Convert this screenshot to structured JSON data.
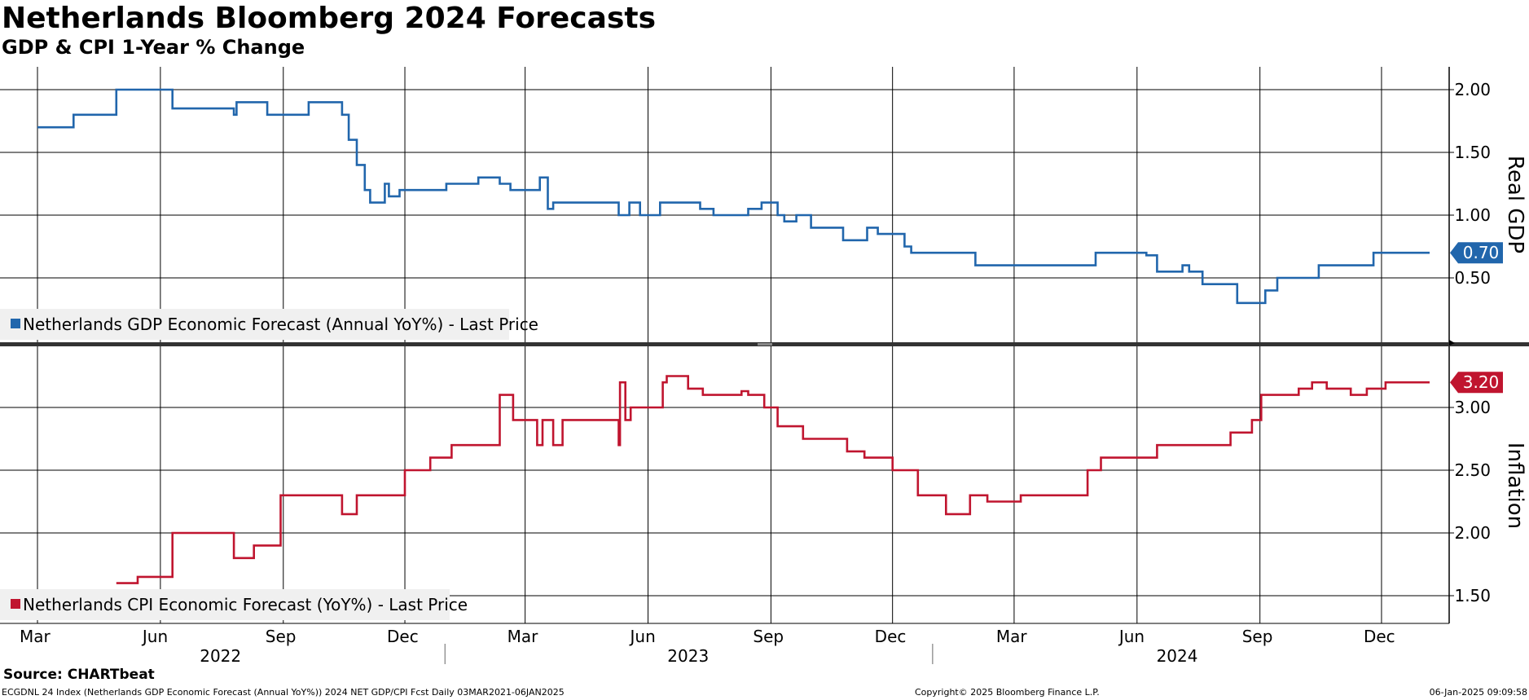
{
  "header": {
    "title": "Netherlands Bloomberg 2024 Forecasts",
    "subtitle": "GDP & CPI 1-Year % Change"
  },
  "footer": {
    "source": "Source: CHARTbeat",
    "description": "ECGDNL 24 Index (Netherlands GDP Economic Forecast (Annual YoY%)) 2024 NET GDP/CPI Fcst  Daily 03MAR2021-06JAN2025",
    "copyright": "Copyright© 2025 Bloomberg Finance L.P.",
    "timestamp": "06-Jan-2025 09:09:58"
  },
  "x_axis": {
    "range": [
      "2022-03-01",
      "2025-01-06"
    ],
    "month_ticks": [
      {
        "label": "Mar",
        "date": "2022-03-01"
      },
      {
        "label": "Jun",
        "date": "2022-06-01"
      },
      {
        "label": "Sep",
        "date": "2022-09-01"
      },
      {
        "label": "Dec",
        "date": "2022-12-01"
      },
      {
        "label": "Mar",
        "date": "2023-03-01"
      },
      {
        "label": "Jun",
        "date": "2023-06-01"
      },
      {
        "label": "Sep",
        "date": "2023-09-01"
      },
      {
        "label": "Dec",
        "date": "2023-12-01"
      },
      {
        "label": "Mar",
        "date": "2024-03-01"
      },
      {
        "label": "Jun",
        "date": "2024-06-01"
      },
      {
        "label": "Sep",
        "date": "2024-09-01"
      },
      {
        "label": "Dec",
        "date": "2024-12-01"
      }
    ],
    "year_labels": [
      {
        "label": "2022",
        "date": "2022-07-16"
      },
      {
        "label": "2023",
        "date": "2023-07-01"
      },
      {
        "label": "2024",
        "date": "2024-07-01"
      }
    ],
    "year_separators": [
      "2022-12-31",
      "2023-12-31"
    ]
  },
  "chart_data": [
    {
      "type": "line",
      "panel": "top",
      "ylabel": "Real GDP",
      "ylim": [
        0.0,
        2.2
      ],
      "yticks": [
        "2.00",
        "1.50",
        "1.00",
        "0.50"
      ],
      "grid": true,
      "legend_position": "bottom-left",
      "color": "#2166ac",
      "last_value_label": "0.70",
      "series": [
        {
          "name": "Netherlands GDP Economic Forecast (Annual YoY%) - Last Price",
          "points": [
            [
              "2022-03-01",
              1.7
            ],
            [
              "2022-03-28",
              1.8
            ],
            [
              "2022-04-29",
              2.0
            ],
            [
              "2022-06-10",
              1.85
            ],
            [
              "2022-07-26",
              1.8
            ],
            [
              "2022-07-28",
              1.9
            ],
            [
              "2022-08-20",
              1.8
            ],
            [
              "2022-09-20",
              1.9
            ],
            [
              "2022-10-15",
              1.8
            ],
            [
              "2022-10-20",
              1.6
            ],
            [
              "2022-10-26",
              1.4
            ],
            [
              "2022-11-01",
              1.2
            ],
            [
              "2022-11-05",
              1.1
            ],
            [
              "2022-11-16",
              1.25
            ],
            [
              "2022-11-19",
              1.15
            ],
            [
              "2022-11-27",
              1.2
            ],
            [
              "2023-01-01",
              1.25
            ],
            [
              "2023-01-25",
              1.3
            ],
            [
              "2023-02-10",
              1.25
            ],
            [
              "2023-02-18",
              1.2
            ],
            [
              "2023-03-12",
              1.3
            ],
            [
              "2023-03-18",
              1.05
            ],
            [
              "2023-03-22",
              1.1
            ],
            [
              "2023-05-10",
              1.0
            ],
            [
              "2023-05-18",
              1.1
            ],
            [
              "2023-05-26",
              1.0
            ],
            [
              "2023-06-10",
              1.1
            ],
            [
              "2023-07-10",
              1.05
            ],
            [
              "2023-07-20",
              1.0
            ],
            [
              "2023-08-15",
              1.05
            ],
            [
              "2023-08-25",
              1.1
            ],
            [
              "2023-09-06",
              1.0
            ],
            [
              "2023-09-11",
              0.95
            ],
            [
              "2023-09-20",
              1.0
            ],
            [
              "2023-10-01",
              0.9
            ],
            [
              "2023-10-25",
              0.8
            ],
            [
              "2023-11-12",
              0.9
            ],
            [
              "2023-11-20",
              0.85
            ],
            [
              "2023-12-10",
              0.75
            ],
            [
              "2023-12-15",
              0.7
            ],
            [
              "2024-02-01",
              0.6
            ],
            [
              "2024-05-01",
              0.7
            ],
            [
              "2024-06-08",
              0.68
            ],
            [
              "2024-06-16",
              0.55
            ],
            [
              "2024-07-05",
              0.6
            ],
            [
              "2024-07-10",
              0.55
            ],
            [
              "2024-07-20",
              0.45
            ],
            [
              "2024-08-15",
              0.3
            ],
            [
              "2024-09-05",
              0.4
            ],
            [
              "2024-09-14",
              0.5
            ],
            [
              "2024-10-15",
              0.6
            ],
            [
              "2024-11-25",
              0.7
            ],
            [
              "2025-01-06",
              0.7
            ]
          ]
        }
      ]
    },
    {
      "type": "line",
      "panel": "bottom",
      "ylabel": "Inflation",
      "ylim": [
        1.25,
        3.35
      ],
      "yticks": [
        "3.00",
        "2.50",
        "2.00",
        "1.50"
      ],
      "grid": true,
      "legend_position": "bottom-left",
      "color": "#c0152f",
      "last_value_label": "3.20",
      "series": [
        {
          "name": "Netherlands CPI Economic Forecast (YoY%) - Last Price",
          "points": [
            [
              "2022-04-29",
              1.6
            ],
            [
              "2022-05-15",
              1.65
            ],
            [
              "2022-06-10",
              2.0
            ],
            [
              "2022-07-26",
              1.8
            ],
            [
              "2022-08-10",
              1.9
            ],
            [
              "2022-08-30",
              2.3
            ],
            [
              "2022-10-15",
              2.15
            ],
            [
              "2022-10-26",
              2.3
            ],
            [
              "2022-12-01",
              2.5
            ],
            [
              "2022-12-20",
              2.6
            ],
            [
              "2023-01-05",
              2.7
            ],
            [
              "2023-02-10",
              3.1
            ],
            [
              "2023-02-20",
              2.9
            ],
            [
              "2023-03-10",
              2.7
            ],
            [
              "2023-03-14",
              2.9
            ],
            [
              "2023-03-22",
              2.7
            ],
            [
              "2023-03-29",
              2.9
            ],
            [
              "2023-05-10",
              2.7
            ],
            [
              "2023-05-11",
              3.2
            ],
            [
              "2023-05-15",
              2.9
            ],
            [
              "2023-05-19",
              3.0
            ],
            [
              "2023-06-12",
              3.2
            ],
            [
              "2023-06-15",
              3.25
            ],
            [
              "2023-07-01",
              3.15
            ],
            [
              "2023-07-12",
              3.1
            ],
            [
              "2023-08-10",
              3.13
            ],
            [
              "2023-08-15",
              3.1
            ],
            [
              "2023-08-27",
              3.0
            ],
            [
              "2023-09-06",
              2.85
            ],
            [
              "2023-09-25",
              2.75
            ],
            [
              "2023-10-28",
              2.65
            ],
            [
              "2023-11-10",
              2.6
            ],
            [
              "2023-12-01",
              2.5
            ],
            [
              "2023-12-20",
              2.3
            ],
            [
              "2024-01-10",
              2.15
            ],
            [
              "2024-01-28",
              2.3
            ],
            [
              "2024-02-10",
              2.25
            ],
            [
              "2024-03-06",
              2.3
            ],
            [
              "2024-04-25",
              2.5
            ],
            [
              "2024-05-05",
              2.6
            ],
            [
              "2024-06-16",
              2.7
            ],
            [
              "2024-08-10",
              2.8
            ],
            [
              "2024-08-26",
              2.9
            ],
            [
              "2024-09-02",
              3.1
            ],
            [
              "2024-09-30",
              3.15
            ],
            [
              "2024-10-10",
              3.2
            ],
            [
              "2024-10-21",
              3.15
            ],
            [
              "2024-11-08",
              3.1
            ],
            [
              "2024-11-20",
              3.15
            ],
            [
              "2024-12-04",
              3.2
            ],
            [
              "2025-01-06",
              3.2
            ]
          ]
        }
      ]
    }
  ]
}
